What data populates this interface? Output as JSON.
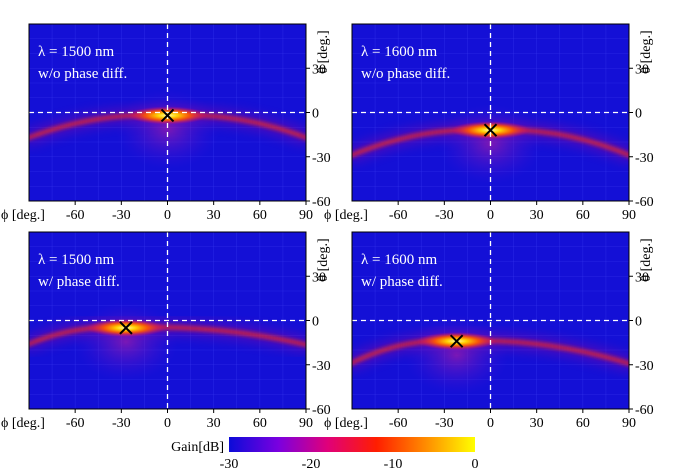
{
  "figure": {
    "colorbar": {
      "label": "Gain[dB]",
      "range": [
        -30,
        0
      ],
      "ticks": [
        "-30",
        "-20",
        "-10",
        "0"
      ],
      "colors": [
        "#0b0bd8",
        "#7a00e0",
        "#e0007a",
        "#ff1e00",
        "#ff8c00",
        "#ffff00"
      ]
    },
    "background_color": "#1410d6"
  },
  "chart_data": [
    {
      "type": "heatmap",
      "annotation": [
        "λ = 1500 nm",
        "w/o phase diff."
      ],
      "xlabel": "ϕ [deg.]",
      "ylabel": "θ [deg.]",
      "xlim": [
        -90,
        90
      ],
      "ylim": [
        -60,
        60
      ],
      "xticks": [
        "-60",
        "-30",
        "0",
        "30",
        "60",
        "90"
      ],
      "yticks": [
        "30",
        "0",
        "-30",
        "-60"
      ],
      "peak": {
        "x": 0,
        "y": -2
      },
      "beam": {
        "left_end_y": -18,
        "right_end_y": -18
      }
    },
    {
      "type": "heatmap",
      "annotation": [
        "λ = 1600 nm",
        "w/o phase diff."
      ],
      "xlabel": "ϕ [deg.]",
      "ylabel": "θ [deg.]",
      "xlim": [
        -90,
        90
      ],
      "ylim": [
        -60,
        60
      ],
      "xticks": [
        "-60",
        "-30",
        "0",
        "30",
        "60",
        "90"
      ],
      "yticks": [
        "30",
        "0",
        "-30",
        "-60"
      ],
      "peak": {
        "x": 0,
        "y": -12
      },
      "beam": {
        "left_end_y": -30,
        "right_end_y": -30
      }
    },
    {
      "type": "heatmap",
      "annotation": [
        "λ = 1500 nm",
        "w/ phase diff."
      ],
      "xlabel": "ϕ [deg.]",
      "ylabel": "θ [deg.]",
      "xlim": [
        -90,
        90
      ],
      "ylim": [
        -60,
        60
      ],
      "xticks": [
        "-60",
        "-30",
        "0",
        "30",
        "60",
        "90"
      ],
      "yticks": [
        "30",
        "0",
        "-30",
        "-60"
      ],
      "peak": {
        "x": -27,
        "y": -5
      },
      "beam": {
        "left_end_y": -17,
        "right_end_y": -17
      }
    },
    {
      "type": "heatmap",
      "annotation": [
        "λ = 1600 nm",
        "w/ phase diff."
      ],
      "xlabel": "ϕ [deg.]",
      "ylabel": "θ [deg.]",
      "xlim": [
        -90,
        90
      ],
      "ylim": [
        -60,
        60
      ],
      "xticks": [
        "-60",
        "-30",
        "0",
        "30",
        "60",
        "90"
      ],
      "yticks": [
        "30",
        "0",
        "-30",
        "-60"
      ],
      "peak": {
        "x": -22,
        "y": -14
      },
      "beam": {
        "left_end_y": -30,
        "right_end_y": -30
      }
    }
  ]
}
